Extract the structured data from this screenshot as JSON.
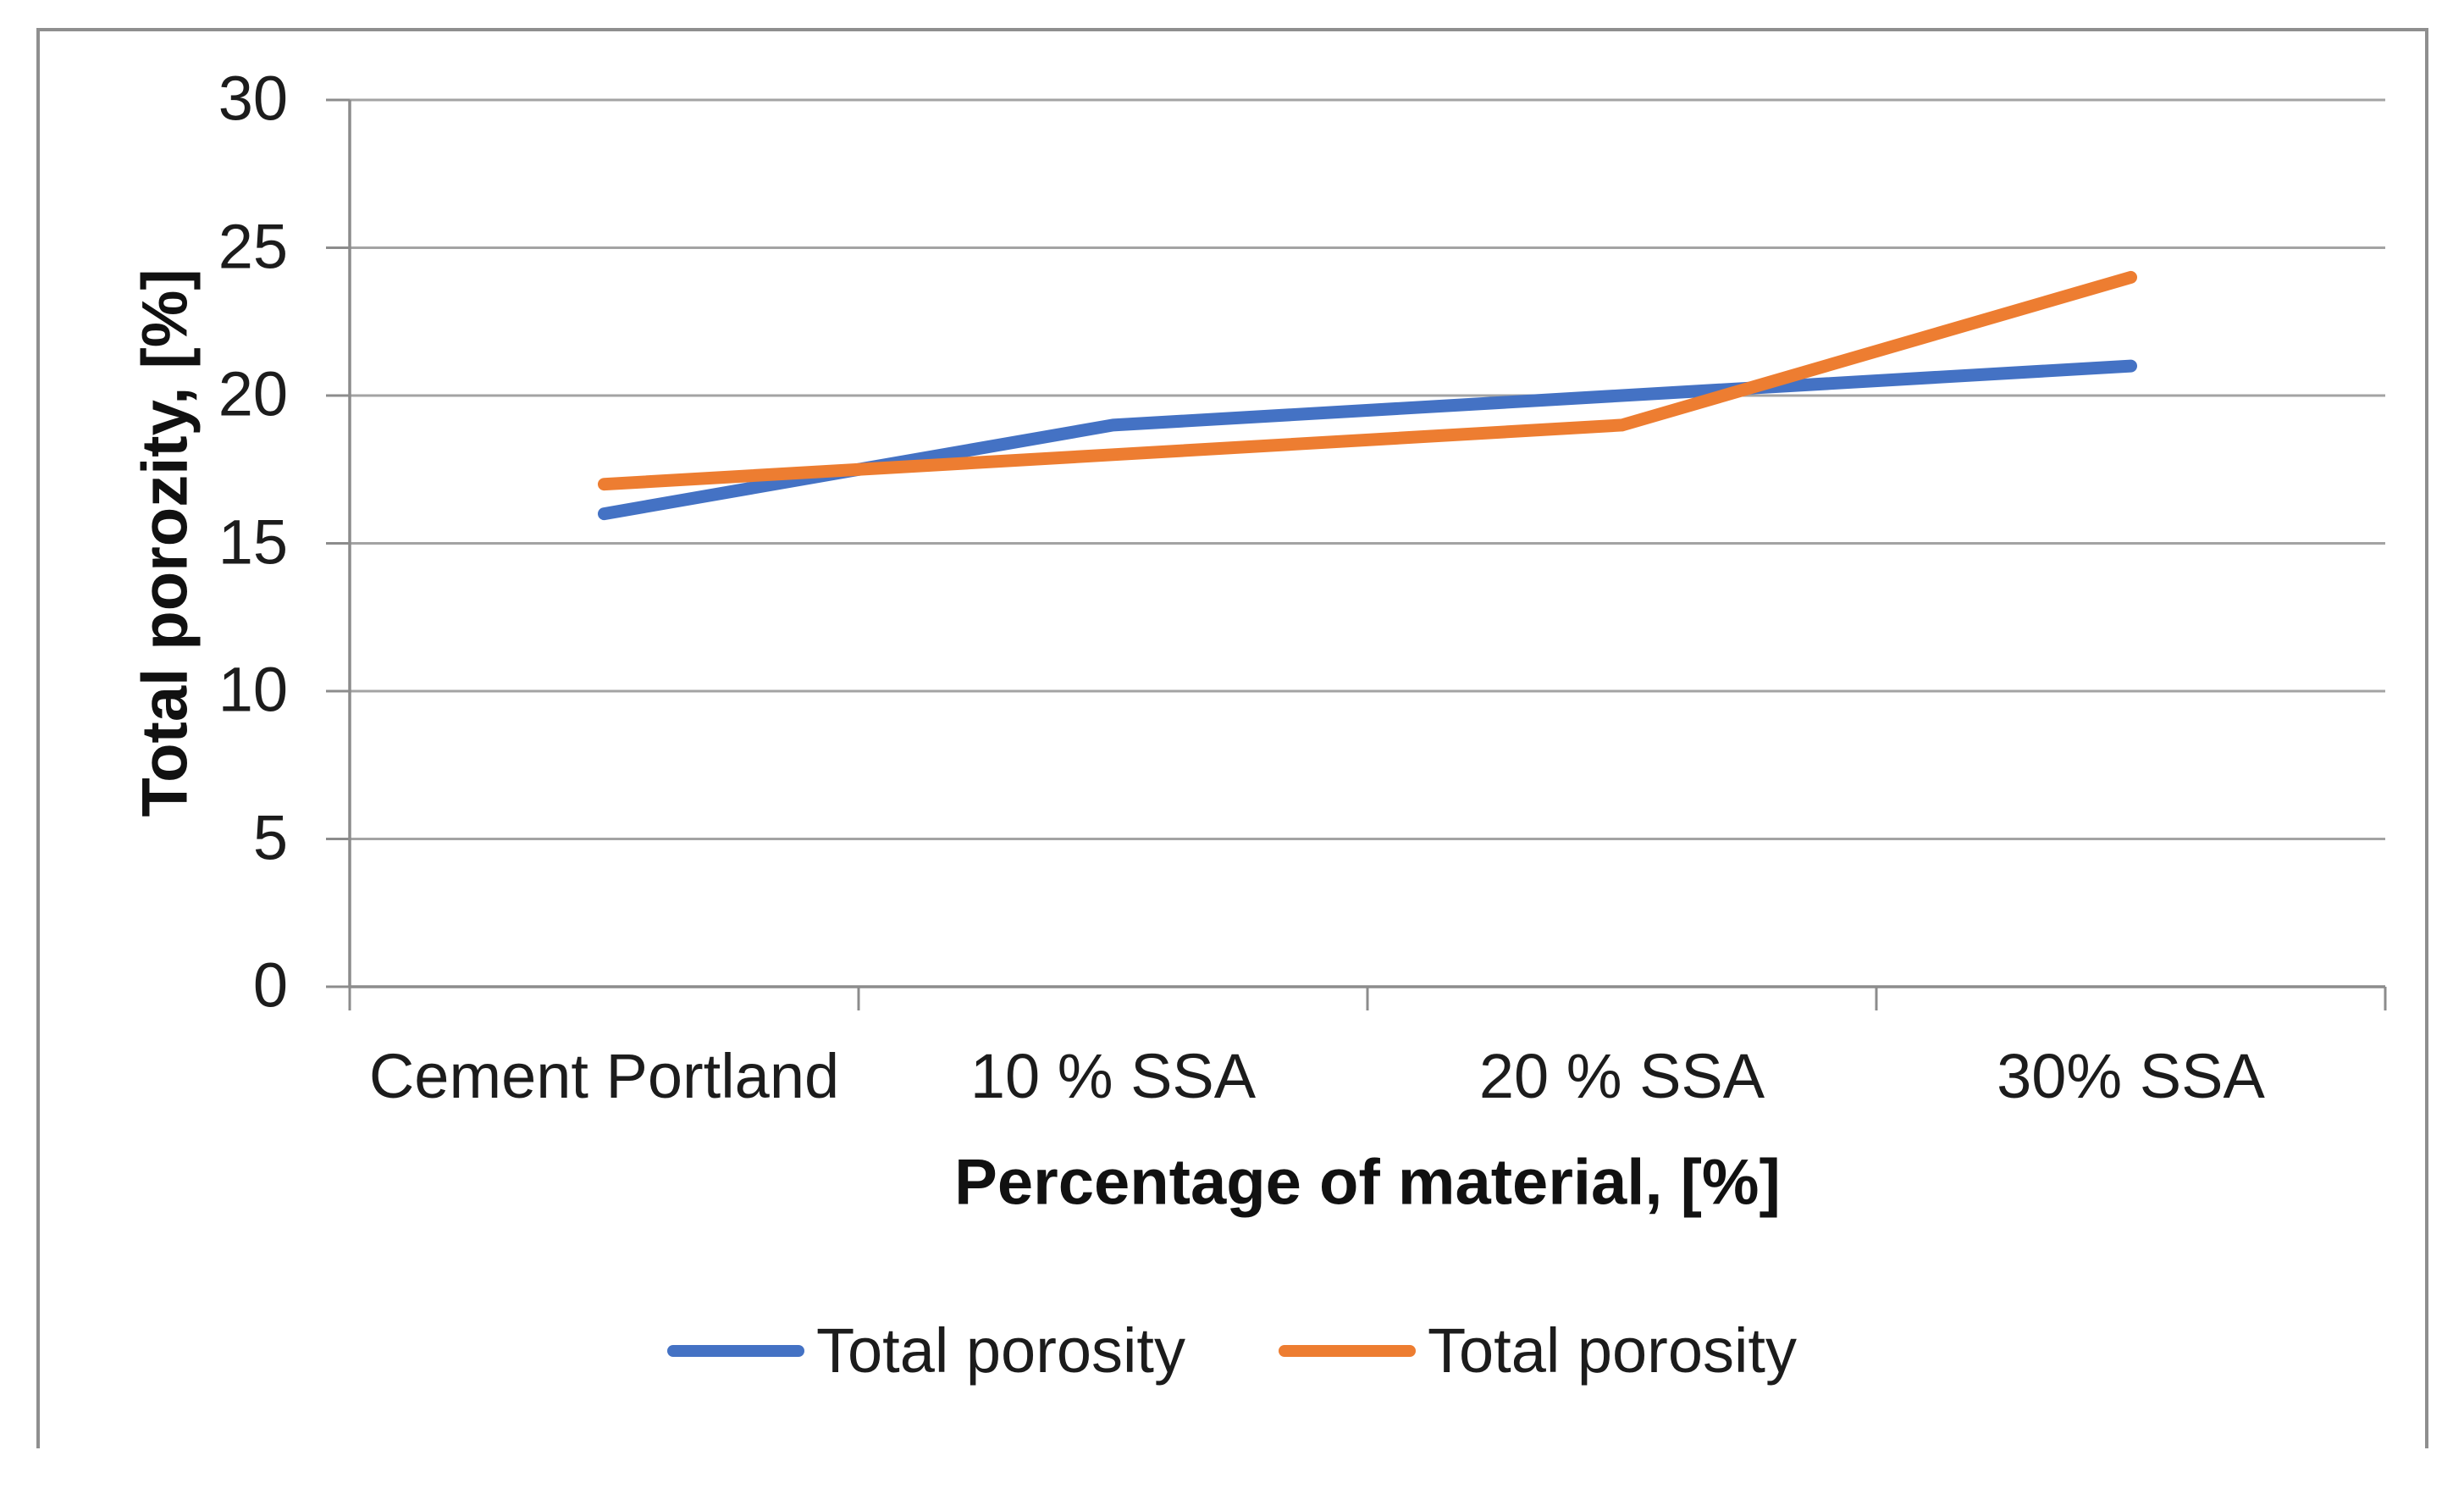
{
  "chart_data": {
    "type": "line",
    "categories": [
      "Cement Portland",
      "10 % SSA",
      "20 % SSA",
      "30% SSA"
    ],
    "series": [
      {
        "name": "Total porosity",
        "color": "#4472C4",
        "values": [
          16,
          19,
          20,
          21
        ]
      },
      {
        "name": "Total porosity",
        "color": "#ED7D31",
        "values": [
          17,
          18,
          19,
          24
        ]
      }
    ],
    "title": "",
    "xlabel": "Percentage of material, [%]",
    "ylabel": "Total porozity, [%]",
    "ylim": [
      0,
      30
    ],
    "yticks": [
      0,
      5,
      10,
      15,
      20,
      25,
      30
    ],
    "grid": true,
    "legend_position": "bottom",
    "colors": {
      "gridline": "#a3a3a3",
      "axis": "#8c8c8c",
      "frame_border": "#8f8f8f",
      "text": "#1c1c1c"
    }
  }
}
